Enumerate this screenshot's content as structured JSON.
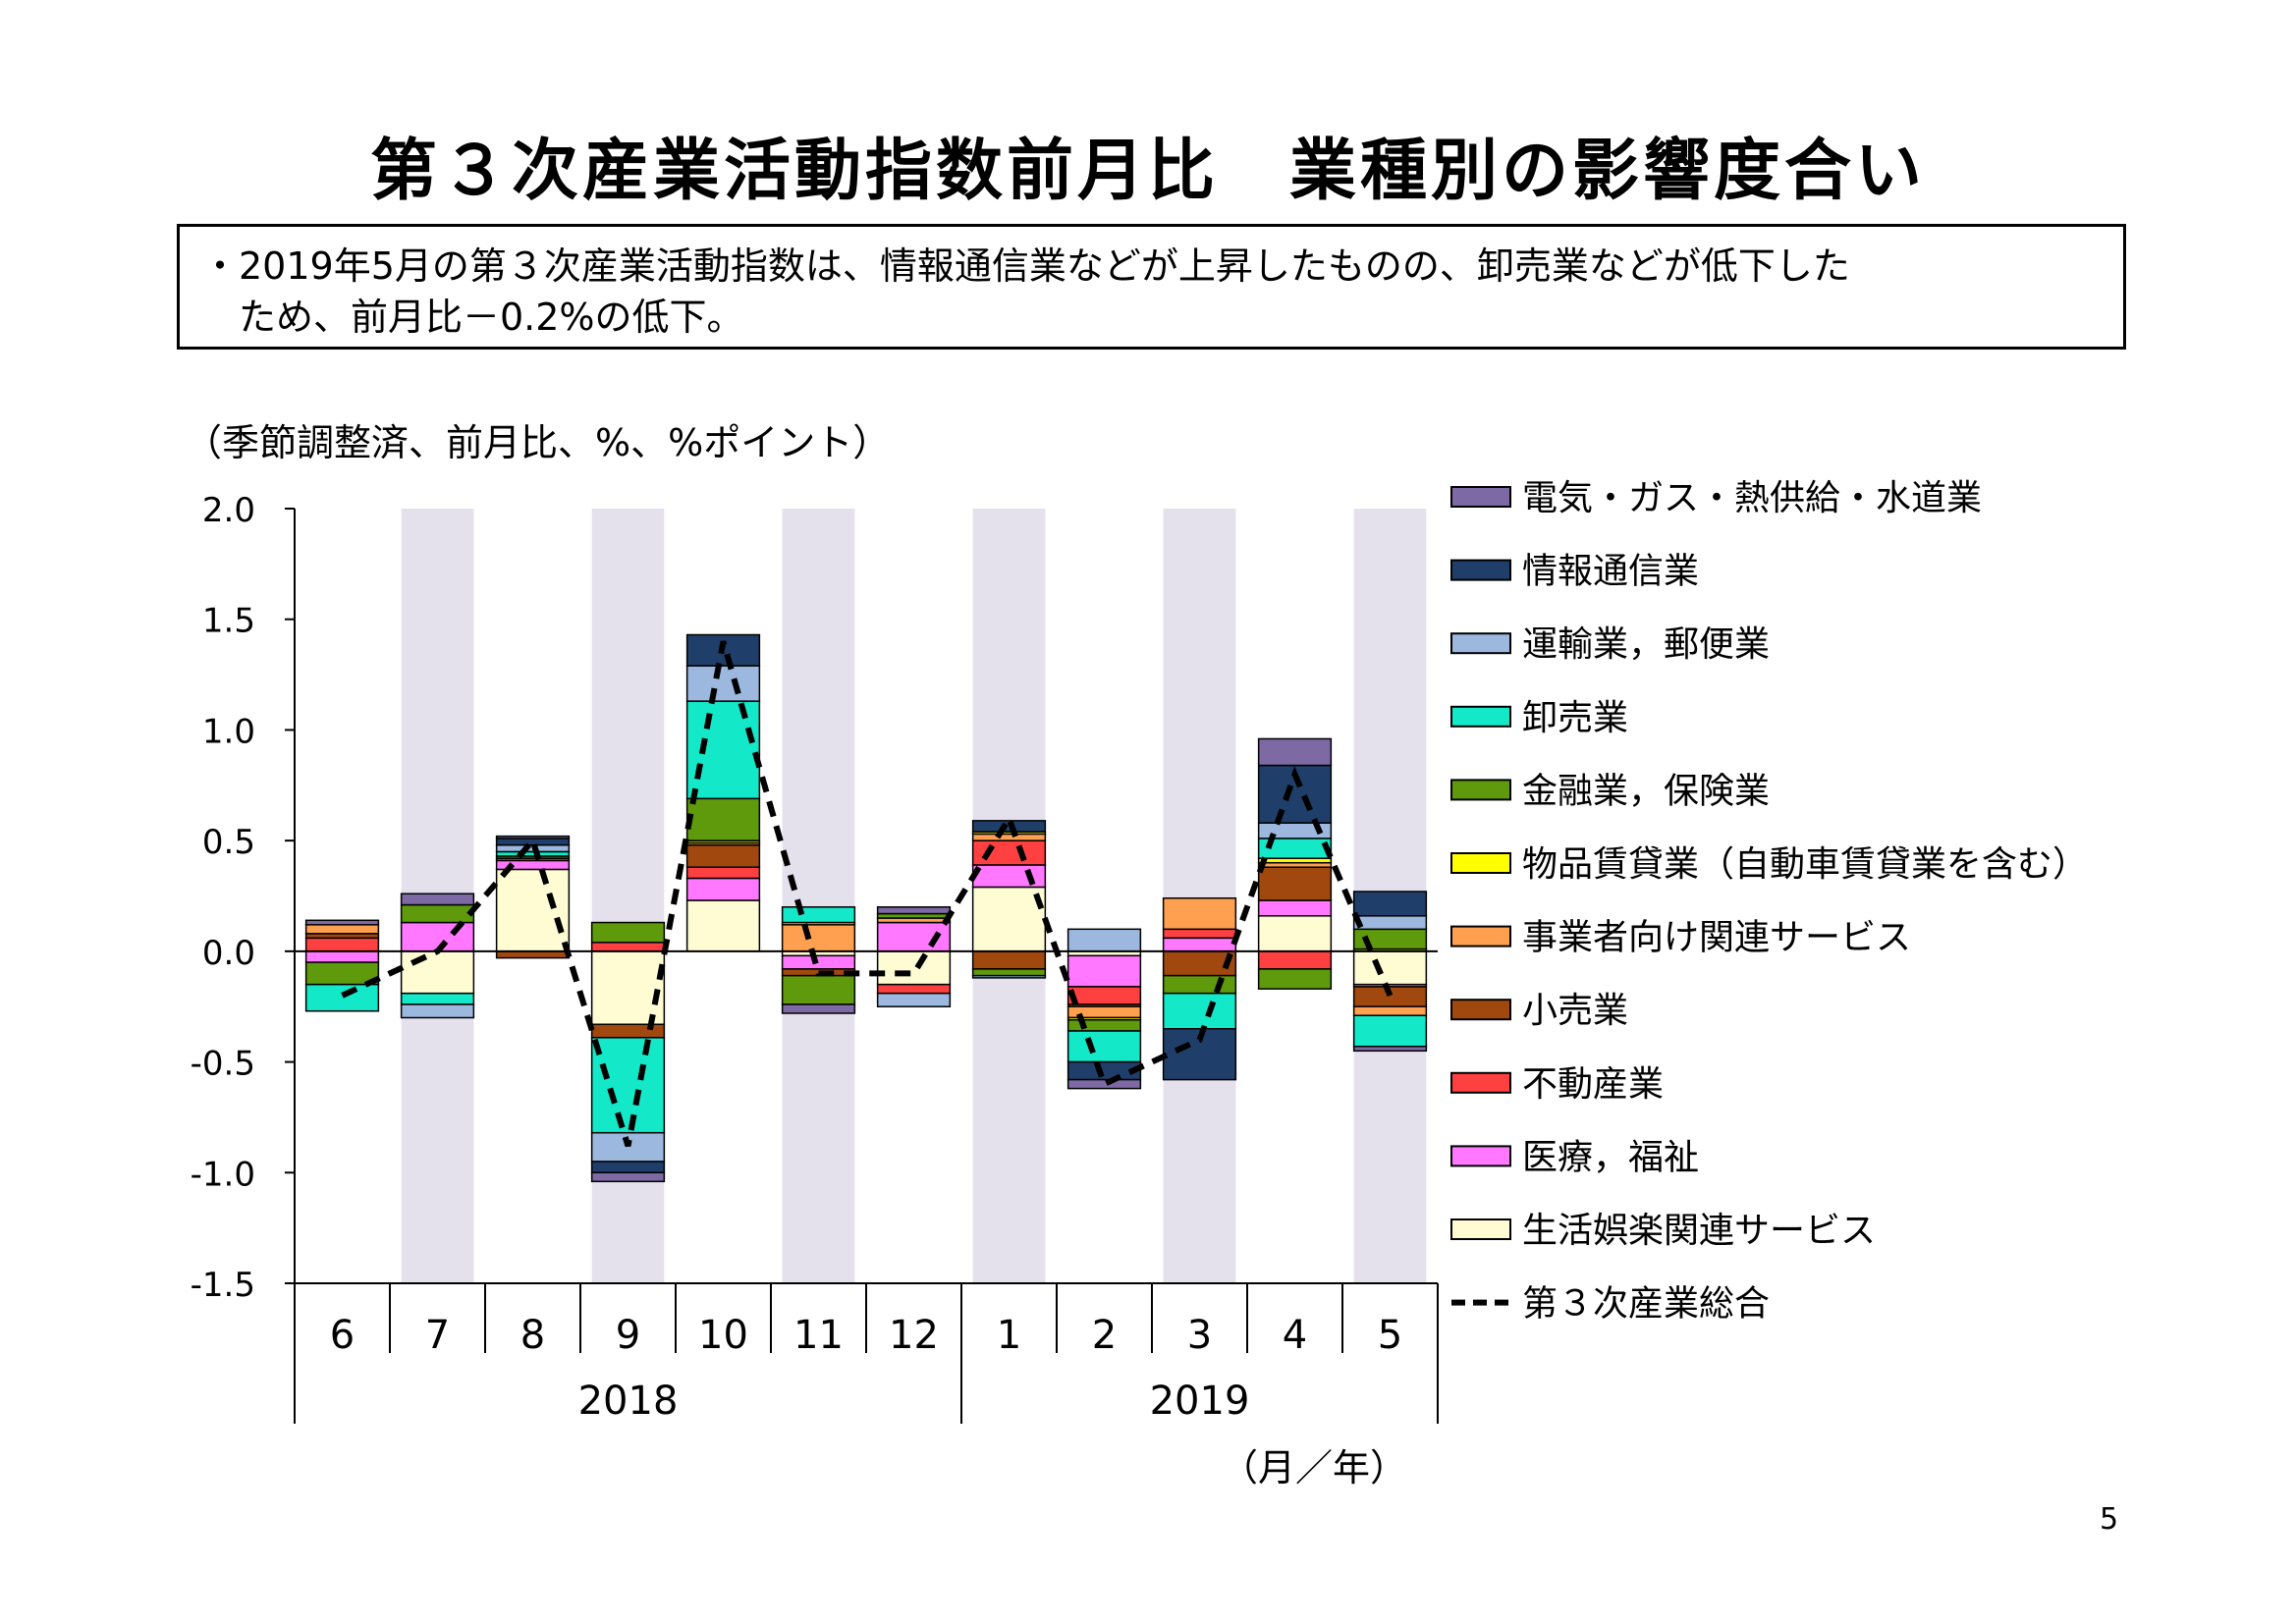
{
  "slide": {
    "title": "第３次産業活動指数前月比　業種別の影響度合い",
    "summary_line1": "・2019年5月の第３次産業活動指数は、情報通信業などが上昇したものの、卸売業などが低下した",
    "summary_line2": "　ため、前月比－0.2%の低下。",
    "unit_note": "（季節調整済、前月比、%、%ポイント）",
    "page_number": "5"
  },
  "chart_data": {
    "type": "bar",
    "stacked": true,
    "categories": [
      "6",
      "7",
      "8",
      "9",
      "10",
      "11",
      "12",
      "1",
      "2",
      "3",
      "4",
      "5"
    ],
    "year_groups": [
      {
        "label": "2018",
        "count": 7
      },
      {
        "label": "2019",
        "count": 5
      }
    ],
    "x_unit_label": "（月／年）",
    "ylim": [
      -1.5,
      2.0
    ],
    "yticks": [
      "2.0",
      "1.5",
      "1.0",
      "0.5",
      "0.0",
      "-0.5",
      "-1.0",
      "-1.5"
    ],
    "ytick_values": [
      2.0,
      1.5,
      1.0,
      0.5,
      0.0,
      -0.5,
      -1.0,
      -1.5
    ],
    "shaded_categories": [
      "7",
      "9",
      "11",
      "1",
      "3",
      "5"
    ],
    "shade_color": "#e4e0ec",
    "series": [
      {
        "name": "生活娯楽関連サービス",
        "color": "#fffcd4",
        "values": [
          0.0,
          -0.19,
          0.37,
          -0.33,
          0.23,
          -0.02,
          -0.15,
          0.29,
          -0.02,
          0.0,
          0.16,
          -0.15
        ]
      },
      {
        "name": "医療，福祉",
        "color": "#ff78ff",
        "values": [
          -0.05,
          0.13,
          0.04,
          0.0,
          0.1,
          -0.06,
          0.13,
          0.1,
          -0.14,
          0.06,
          0.07,
          -0.01
        ]
      },
      {
        "name": "不動産業",
        "color": "#ff4040",
        "values": [
          0.06,
          0.0,
          0.01,
          0.04,
          0.05,
          0.0,
          -0.04,
          0.11,
          -0.08,
          0.04,
          -0.08,
          0.0
        ]
      },
      {
        "name": "小売業",
        "color": "#a0480e",
        "values": [
          0.02,
          0.0,
          -0.03,
          -0.06,
          0.1,
          -0.03,
          0.0,
          -0.08,
          -0.01,
          -0.11,
          0.15,
          -0.09
        ]
      },
      {
        "name": "事業者向け関連サービス",
        "color": "#ffa050",
        "values": [
          0.04,
          0.0,
          0.0,
          0.0,
          0.01,
          0.12,
          0.02,
          0.03,
          -0.05,
          0.14,
          0.02,
          -0.04
        ]
      },
      {
        "name": "物品賃貸業（自動車賃貸業を含む）",
        "color": "#ffff00",
        "values": [
          0.0,
          0.0,
          0.0,
          0.0,
          0.01,
          0.01,
          0.0,
          0.01,
          -0.01,
          0.0,
          0.02,
          0.01
        ]
      },
      {
        "name": "金融業，保険業",
        "color": "#5e9a0c",
        "values": [
          -0.1,
          0.08,
          0.01,
          0.09,
          0.19,
          -0.13,
          0.02,
          -0.03,
          -0.05,
          -0.08,
          -0.09,
          0.09
        ]
      },
      {
        "name": "卸売業",
        "color": "#13e8c8",
        "values": [
          -0.12,
          -0.05,
          0.02,
          -0.43,
          0.44,
          0.07,
          0.0,
          0.0,
          -0.14,
          -0.16,
          0.09,
          -0.14
        ]
      },
      {
        "name": "運輸業，郵便業",
        "color": "#9cb8de",
        "values": [
          0.0,
          -0.06,
          0.03,
          -0.13,
          0.16,
          0.0,
          -0.06,
          -0.01,
          0.1,
          0.0,
          0.07,
          0.06
        ]
      },
      {
        "name": "情報通信業",
        "color": "#1f3f6a",
        "values": [
          0.0,
          0.0,
          0.03,
          -0.05,
          0.14,
          0.0,
          0.0,
          0.05,
          -0.08,
          -0.23,
          0.26,
          0.11
        ]
      },
      {
        "name": "電気・ガス・熱供給・水道業",
        "color": "#7d6aa4",
        "values": [
          0.02,
          0.05,
          0.01,
          -0.04,
          0.0,
          -0.04,
          0.03,
          0.0,
          -0.04,
          0.0,
          0.12,
          -0.02
        ]
      }
    ],
    "legend_order": [
      "電気・ガス・熱供給・水道業",
      "情報通信業",
      "運輸業，郵便業",
      "卸売業",
      "金融業，保険業",
      "物品賃貸業（自動車賃貸業を含む）",
      "事業者向け関連サービス",
      "小売業",
      "不動産業",
      "医療，福祉",
      "生活娯楽関連サービス"
    ],
    "total_line": {
      "name": "第３次産業総合",
      "color": "#000000",
      "style": "dashed",
      "values": [
        -0.2,
        0.0,
        0.5,
        -0.88,
        1.4,
        -0.1,
        -0.1,
        0.6,
        -0.6,
        -0.4,
        0.8,
        -0.2
      ]
    },
    "legend_position": "right"
  }
}
